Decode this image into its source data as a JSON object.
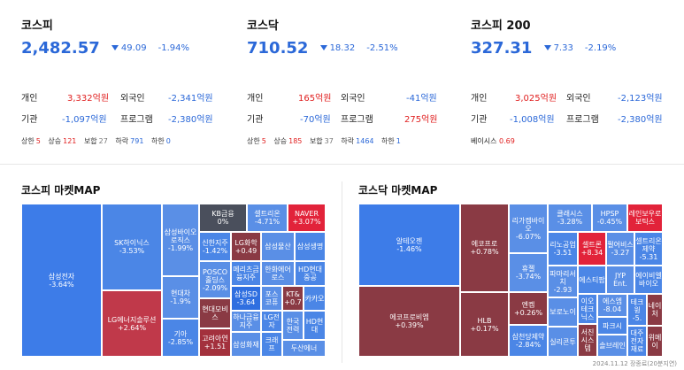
{
  "panels": [
    {
      "name": "코스피",
      "index": "2,482.57",
      "change": "49.09",
      "pct": "-1.94%",
      "flows": {
        "l1": "개인",
        "v1": "3,332억원",
        "l2": "외국인",
        "v2": "-2,341억원",
        "l3": "기관",
        "v3": "-1,097억원",
        "l4": "프로그램",
        "v4": "-2,380억원"
      },
      "counts": {
        "upper_l": "상한",
        "upper_v": "5",
        "rise_l": "상승",
        "rise_v": "121",
        "flat_l": "보합",
        "flat_v": "27",
        "fall_l": "하락",
        "fall_v": "791",
        "lower_l": "하한",
        "lower_v": "0"
      }
    },
    {
      "name": "코스닥",
      "index": "710.52",
      "change": "18.32",
      "pct": "-2.51%",
      "flows": {
        "l1": "개인",
        "v1": "165억원",
        "l2": "외국인",
        "v2": "-41억원",
        "l3": "기관",
        "v3": "-70억원",
        "l4": "프로그램",
        "v4": "275억원"
      },
      "counts": {
        "upper_l": "상한",
        "upper_v": "5",
        "rise_l": "상승",
        "rise_v": "185",
        "flat_l": "보합",
        "flat_v": "37",
        "fall_l": "하락",
        "fall_v": "1464",
        "lower_l": "하한",
        "lower_v": "1"
      }
    },
    {
      "name": "코스피 200",
      "index": "327.31",
      "change": "7.33",
      "pct": "-2.19%",
      "flows": {
        "l1": "개인",
        "v1": "3,025억원",
        "l2": "외국인",
        "v2": "-2,123억원",
        "l3": "기관",
        "v3": "-1,008억원",
        "l4": "프로그램",
        "v4": "-2,380억원"
      },
      "basis": {
        "label": "베이시스",
        "value": "0.69"
      }
    }
  ],
  "maps": {
    "kospi_title": "코스피 마켓MAP",
    "kosdaq_title": "코스닥 마켓MAP"
  },
  "kospi_cells": [
    {
      "n": "삼성전자",
      "v": "-3.64%"
    },
    {
      "n": "SK하이닉스",
      "v": "-3.53%"
    },
    {
      "n": "LG에너지솔루션",
      "v": "+2.64%"
    },
    {
      "n": "삼성바이오로직스",
      "v": "-1.99%"
    },
    {
      "n": "현대차",
      "v": "-1.9%"
    },
    {
      "n": "기아",
      "v": "-2.85%"
    },
    {
      "n": "KB금융",
      "v": "0%"
    },
    {
      "n": "셀트리온",
      "v": "-4.71%"
    },
    {
      "n": "NAVER",
      "v": "+3.07%"
    },
    {
      "n": "신한지주",
      "v": "-1.42%"
    },
    {
      "n": "LG화학",
      "v": "+0.49"
    },
    {
      "n": "삼성물산",
      "v": ""
    },
    {
      "n": "삼성생명",
      "v": ""
    },
    {
      "n": "POSCO홀딩스",
      "v": "-2.09%"
    },
    {
      "n": "메리츠금융지주",
      "v": ""
    },
    {
      "n": "한화에어로스",
      "v": ""
    },
    {
      "n": "HD현대중공",
      "v": ""
    },
    {
      "n": "삼성SD",
      "v": "-3.64"
    },
    {
      "n": "포스코퓨",
      "v": ""
    },
    {
      "n": "KT&",
      "v": "+0.7"
    },
    {
      "n": "카카오",
      "v": ""
    },
    {
      "n": "현대모비스",
      "v": ""
    },
    {
      "n": "하나금융지주",
      "v": ""
    },
    {
      "n": "LG전자",
      "v": ""
    },
    {
      "n": "한국전력",
      "v": ""
    },
    {
      "n": "HD현대",
      "v": ""
    },
    {
      "n": "고려아연",
      "v": "+1.51"
    },
    {
      "n": "삼성화재",
      "v": ""
    },
    {
      "n": "크래프",
      "v": ""
    },
    {
      "n": "두산에너",
      "v": ""
    }
  ],
  "kosdaq_cells": [
    {
      "n": "알테오젠",
      "v": "-1.46%"
    },
    {
      "n": "에코프로비엠",
      "v": "+0.39%"
    },
    {
      "n": "에코프로",
      "v": "+0.78%"
    },
    {
      "n": "HLB",
      "v": "+0.17%"
    },
    {
      "n": "리가켐바이오",
      "v": "-6.07%"
    },
    {
      "n": "휴젤",
      "v": "-3.74%"
    },
    {
      "n": "엔켐",
      "v": "+0.26%"
    },
    {
      "n": "삼천당제약",
      "v": "-2.84%"
    },
    {
      "n": "클래시스",
      "v": "-3.28%"
    },
    {
      "n": "HPSP",
      "v": "-0.45%"
    },
    {
      "n": "레인보우로보틱스",
      "v": ""
    },
    {
      "n": "리노공업",
      "v": "-3.51"
    },
    {
      "n": "셀트론",
      "v": "+8.34"
    },
    {
      "n": "펄어비스",
      "v": "-3.27"
    },
    {
      "n": "셀트리온제약",
      "v": "-5.31"
    },
    {
      "n": "파마리서치",
      "v": "-2.93"
    },
    {
      "n": "에스티팜",
      "v": ""
    },
    {
      "n": "JYP Ent.",
      "v": ""
    },
    {
      "n": "에이비엘바이오",
      "v": ""
    },
    {
      "n": "보로노이",
      "v": ""
    },
    {
      "n": "이오테크닉스",
      "v": ""
    },
    {
      "n": "에스엠",
      "v": "-8.04"
    },
    {
      "n": "테크윙",
      "v": "-5."
    },
    {
      "n": "네이처",
      "v": ""
    },
    {
      "n": "실리콘투",
      "v": ""
    },
    {
      "n": "서진시스템",
      "v": ""
    },
    {
      "n": "파크시",
      "v": ""
    },
    {
      "n": "솔브레인",
      "v": ""
    },
    {
      "n": "대주전자재료",
      "v": ""
    },
    {
      "n": "위메이",
      "v": ""
    }
  ],
  "footer": "2024.11.12 장종료(20분지연)"
}
